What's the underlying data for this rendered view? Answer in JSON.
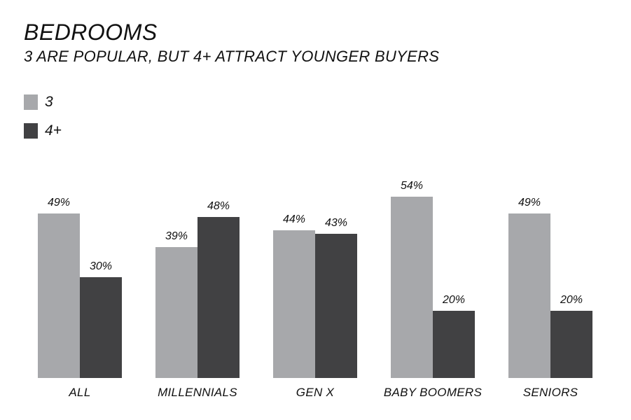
{
  "title": "BEDROOMS",
  "subtitle": "3 ARE POPULAR, BUT 4+ ATTRACT YOUNGER BUYERS",
  "legend": [
    {
      "label": "3",
      "color": "#a7a8ab"
    },
    {
      "label": "4+",
      "color": "#414143"
    }
  ],
  "colors": {
    "series_3": "#a7a8ab",
    "series_4plus": "#414143",
    "text": "#111111",
    "background": "#ffffff"
  },
  "chart_data": {
    "type": "bar",
    "title": "BEDROOMS",
    "subtitle": "3 ARE POPULAR, BUT 4+ ATTRACT YOUNGER BUYERS",
    "categories": [
      "ALL",
      "MILLENNIALS",
      "GEN X",
      "BABY BOOMERS",
      "SENIORS"
    ],
    "series": [
      {
        "name": "3",
        "values": [
          49,
          39,
          44,
          54,
          49
        ],
        "labels": [
          "49%",
          "39%",
          "44%",
          "54%",
          "49%"
        ]
      },
      {
        "name": "4+",
        "values": [
          30,
          48,
          43,
          20,
          20
        ],
        "labels": [
          "30%",
          "48%",
          "43%",
          "20%",
          "20%"
        ]
      }
    ],
    "xlabel": "",
    "ylabel": "",
    "unit": "%",
    "ylim": [
      0,
      60
    ],
    "grid": false,
    "axes_visible": false,
    "legend_position": "top-left",
    "data_labels": true
  }
}
